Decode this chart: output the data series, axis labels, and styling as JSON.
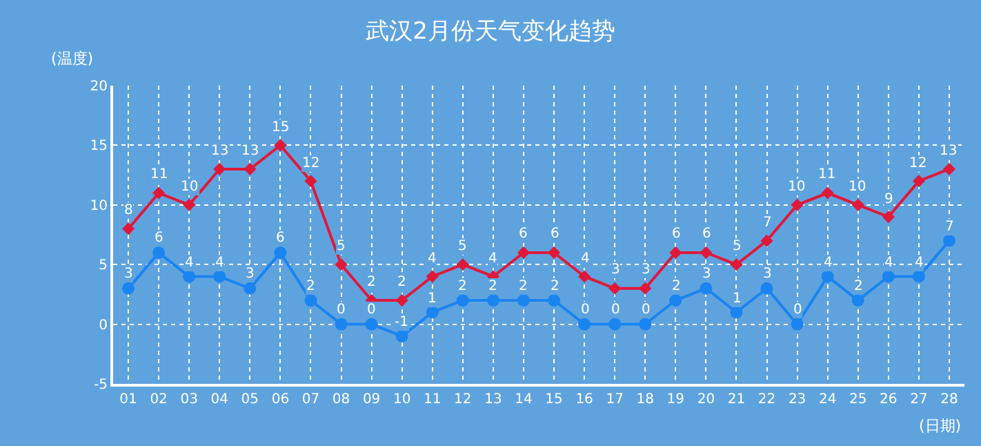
{
  "chart_data": {
    "type": "line",
    "title": "武汉2月份天气变化趋势",
    "xlabel": "(日期)",
    "ylabel": "(温度)",
    "categories": [
      "01",
      "02",
      "03",
      "04",
      "05",
      "06",
      "07",
      "08",
      "09",
      "10",
      "11",
      "12",
      "13",
      "14",
      "15",
      "16",
      "17",
      "18",
      "19",
      "20",
      "21",
      "22",
      "23",
      "24",
      "25",
      "26",
      "27",
      "28"
    ],
    "series": [
      {
        "color": "#e0193a",
        "marker": "diamond",
        "values": [
          8,
          11,
          10,
          13,
          13,
          15,
          12,
          5,
          2,
          2,
          4,
          5,
          4,
          6,
          6,
          4,
          3,
          3,
          6,
          6,
          5,
          7,
          10,
          11,
          10,
          9,
          12,
          13
        ]
      },
      {
        "color": "#1a84f0",
        "marker": "circle",
        "values": [
          3,
          6,
          4,
          4,
          3,
          6,
          2,
          0,
          0,
          -1,
          1,
          2,
          2,
          2,
          2,
          0,
          0,
          0,
          2,
          3,
          1,
          3,
          0,
          4,
          2,
          4,
          4,
          7
        ]
      }
    ],
    "ylim": [
      -5,
      20
    ],
    "yticks": [
      -5,
      0,
      5,
      10,
      15,
      20
    ],
    "grid": true,
    "legend": false,
    "data_labels": true,
    "line_style": "solid"
  }
}
